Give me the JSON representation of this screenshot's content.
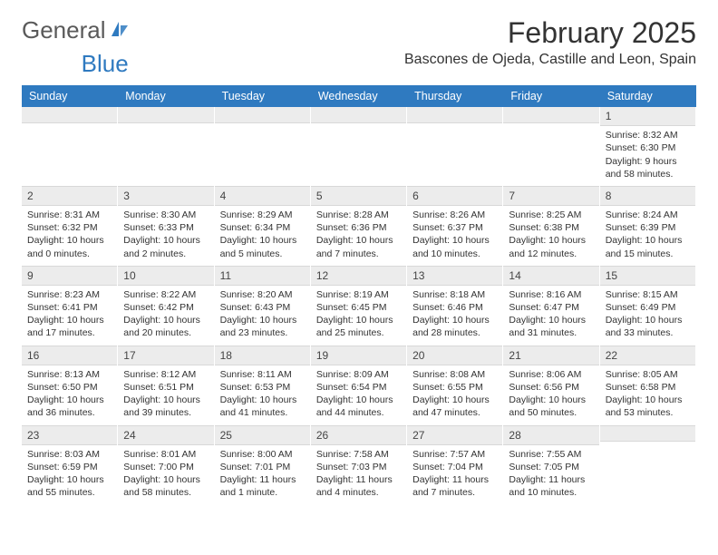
{
  "brand": {
    "word1": "General",
    "word2": "Blue",
    "word2_color": "#2f7ac0",
    "icon_color": "#2f7ac0"
  },
  "title": "February 2025",
  "location": "Bascones de Ojeda, Castille and Leon, Spain",
  "colors": {
    "header_bg": "#2f7ac0",
    "header_text": "#ffffff",
    "daynum_bg": "#ececec",
    "text": "#333333"
  },
  "day_names": [
    "Sunday",
    "Monday",
    "Tuesday",
    "Wednesday",
    "Thursday",
    "Friday",
    "Saturday"
  ],
  "weeks": [
    [
      {
        "n": "",
        "lines": []
      },
      {
        "n": "",
        "lines": []
      },
      {
        "n": "",
        "lines": []
      },
      {
        "n": "",
        "lines": []
      },
      {
        "n": "",
        "lines": []
      },
      {
        "n": "",
        "lines": []
      },
      {
        "n": "1",
        "lines": [
          "Sunrise: 8:32 AM",
          "Sunset: 6:30 PM",
          "Daylight: 9 hours",
          "and 58 minutes."
        ]
      }
    ],
    [
      {
        "n": "2",
        "lines": [
          "Sunrise: 8:31 AM",
          "Sunset: 6:32 PM",
          "Daylight: 10 hours",
          "and 0 minutes."
        ]
      },
      {
        "n": "3",
        "lines": [
          "Sunrise: 8:30 AM",
          "Sunset: 6:33 PM",
          "Daylight: 10 hours",
          "and 2 minutes."
        ]
      },
      {
        "n": "4",
        "lines": [
          "Sunrise: 8:29 AM",
          "Sunset: 6:34 PM",
          "Daylight: 10 hours",
          "and 5 minutes."
        ]
      },
      {
        "n": "5",
        "lines": [
          "Sunrise: 8:28 AM",
          "Sunset: 6:36 PM",
          "Daylight: 10 hours",
          "and 7 minutes."
        ]
      },
      {
        "n": "6",
        "lines": [
          "Sunrise: 8:26 AM",
          "Sunset: 6:37 PM",
          "Daylight: 10 hours",
          "and 10 minutes."
        ]
      },
      {
        "n": "7",
        "lines": [
          "Sunrise: 8:25 AM",
          "Sunset: 6:38 PM",
          "Daylight: 10 hours",
          "and 12 minutes."
        ]
      },
      {
        "n": "8",
        "lines": [
          "Sunrise: 8:24 AM",
          "Sunset: 6:39 PM",
          "Daylight: 10 hours",
          "and 15 minutes."
        ]
      }
    ],
    [
      {
        "n": "9",
        "lines": [
          "Sunrise: 8:23 AM",
          "Sunset: 6:41 PM",
          "Daylight: 10 hours",
          "and 17 minutes."
        ]
      },
      {
        "n": "10",
        "lines": [
          "Sunrise: 8:22 AM",
          "Sunset: 6:42 PM",
          "Daylight: 10 hours",
          "and 20 minutes."
        ]
      },
      {
        "n": "11",
        "lines": [
          "Sunrise: 8:20 AM",
          "Sunset: 6:43 PM",
          "Daylight: 10 hours",
          "and 23 minutes."
        ]
      },
      {
        "n": "12",
        "lines": [
          "Sunrise: 8:19 AM",
          "Sunset: 6:45 PM",
          "Daylight: 10 hours",
          "and 25 minutes."
        ]
      },
      {
        "n": "13",
        "lines": [
          "Sunrise: 8:18 AM",
          "Sunset: 6:46 PM",
          "Daylight: 10 hours",
          "and 28 minutes."
        ]
      },
      {
        "n": "14",
        "lines": [
          "Sunrise: 8:16 AM",
          "Sunset: 6:47 PM",
          "Daylight: 10 hours",
          "and 31 minutes."
        ]
      },
      {
        "n": "15",
        "lines": [
          "Sunrise: 8:15 AM",
          "Sunset: 6:49 PM",
          "Daylight: 10 hours",
          "and 33 minutes."
        ]
      }
    ],
    [
      {
        "n": "16",
        "lines": [
          "Sunrise: 8:13 AM",
          "Sunset: 6:50 PM",
          "Daylight: 10 hours",
          "and 36 minutes."
        ]
      },
      {
        "n": "17",
        "lines": [
          "Sunrise: 8:12 AM",
          "Sunset: 6:51 PM",
          "Daylight: 10 hours",
          "and 39 minutes."
        ]
      },
      {
        "n": "18",
        "lines": [
          "Sunrise: 8:11 AM",
          "Sunset: 6:53 PM",
          "Daylight: 10 hours",
          "and 41 minutes."
        ]
      },
      {
        "n": "19",
        "lines": [
          "Sunrise: 8:09 AM",
          "Sunset: 6:54 PM",
          "Daylight: 10 hours",
          "and 44 minutes."
        ]
      },
      {
        "n": "20",
        "lines": [
          "Sunrise: 8:08 AM",
          "Sunset: 6:55 PM",
          "Daylight: 10 hours",
          "and 47 minutes."
        ]
      },
      {
        "n": "21",
        "lines": [
          "Sunrise: 8:06 AM",
          "Sunset: 6:56 PM",
          "Daylight: 10 hours",
          "and 50 minutes."
        ]
      },
      {
        "n": "22",
        "lines": [
          "Sunrise: 8:05 AM",
          "Sunset: 6:58 PM",
          "Daylight: 10 hours",
          "and 53 minutes."
        ]
      }
    ],
    [
      {
        "n": "23",
        "lines": [
          "Sunrise: 8:03 AM",
          "Sunset: 6:59 PM",
          "Daylight: 10 hours",
          "and 55 minutes."
        ]
      },
      {
        "n": "24",
        "lines": [
          "Sunrise: 8:01 AM",
          "Sunset: 7:00 PM",
          "Daylight: 10 hours",
          "and 58 minutes."
        ]
      },
      {
        "n": "25",
        "lines": [
          "Sunrise: 8:00 AM",
          "Sunset: 7:01 PM",
          "Daylight: 11 hours",
          "and 1 minute."
        ]
      },
      {
        "n": "26",
        "lines": [
          "Sunrise: 7:58 AM",
          "Sunset: 7:03 PM",
          "Daylight: 11 hours",
          "and 4 minutes."
        ]
      },
      {
        "n": "27",
        "lines": [
          "Sunrise: 7:57 AM",
          "Sunset: 7:04 PM",
          "Daylight: 11 hours",
          "and 7 minutes."
        ]
      },
      {
        "n": "28",
        "lines": [
          "Sunrise: 7:55 AM",
          "Sunset: 7:05 PM",
          "Daylight: 11 hours",
          "and 10 minutes."
        ]
      },
      {
        "n": "",
        "lines": []
      }
    ]
  ]
}
